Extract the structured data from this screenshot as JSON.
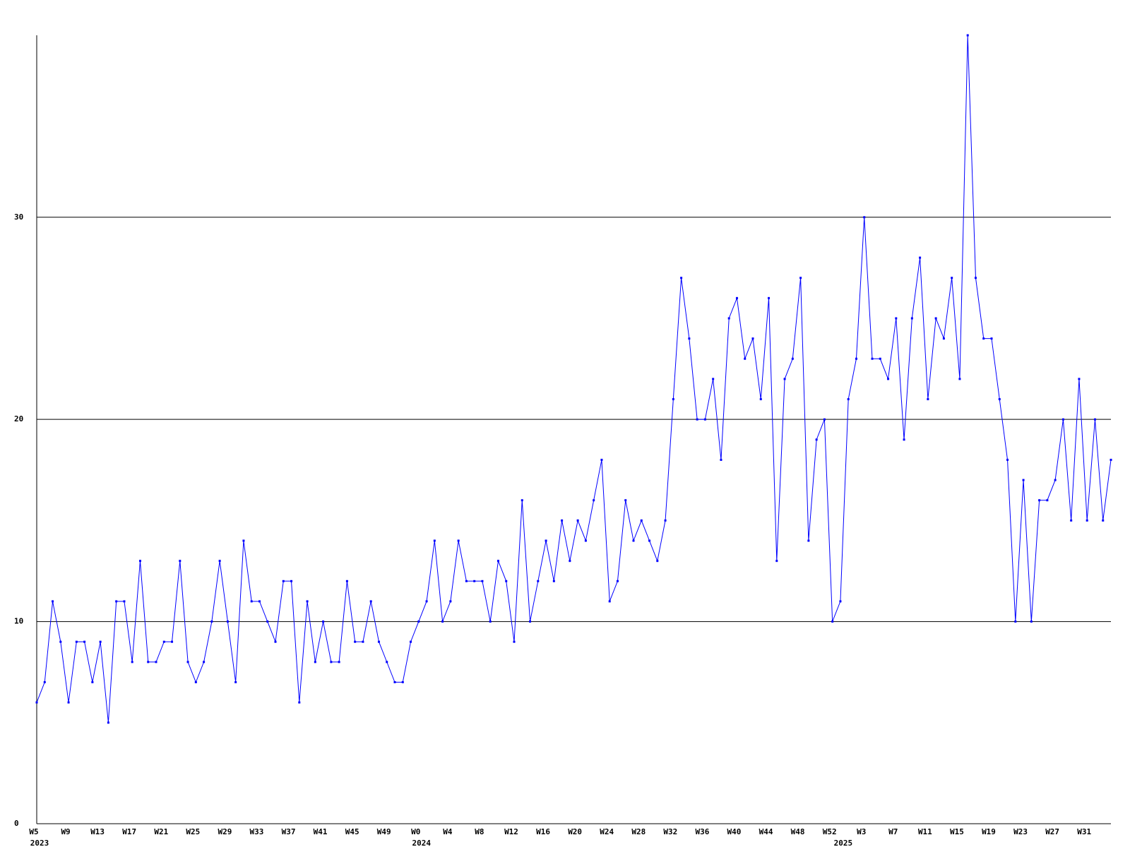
{
  "chart_data": {
    "type": "line",
    "categories": [
      "W5",
      null,
      null,
      null,
      "W9",
      null,
      null,
      null,
      "W13",
      null,
      null,
      null,
      "W17",
      null,
      null,
      null,
      "W21",
      null,
      null,
      null,
      "W25",
      null,
      null,
      null,
      "W29",
      null,
      null,
      null,
      "W33",
      null,
      null,
      null,
      "W37",
      null,
      null,
      null,
      "W41",
      null,
      null,
      null,
      "W45",
      null,
      null,
      null,
      "W49",
      null,
      null,
      null,
      "W0",
      null,
      null,
      null,
      "W4",
      null,
      null,
      null,
      "W8",
      null,
      null,
      null,
      "W12",
      null,
      null,
      null,
      "W16",
      null,
      null,
      null,
      "W20",
      null,
      null,
      null,
      "W24",
      null,
      null,
      null,
      "W28",
      null,
      null,
      null,
      "W32",
      null,
      null,
      null,
      "W36",
      null,
      null,
      null,
      "W40",
      null,
      null,
      null,
      "W44",
      null,
      null,
      null,
      "W48",
      null,
      null,
      null,
      "W52",
      null,
      null,
      null,
      "W3",
      null,
      null,
      null,
      "W7",
      null,
      null,
      null,
      "W11",
      null,
      null,
      null,
      "W15",
      null,
      null,
      null,
      "W19",
      null,
      null,
      null,
      "W23",
      null,
      null,
      null,
      "W27",
      null,
      null,
      null,
      "W31",
      null,
      null,
      null
    ],
    "year_labels": [
      {
        "category_index": 0,
        "label": "2023"
      },
      {
        "category_index": 48,
        "label": "2024"
      },
      {
        "category_index": 101,
        "label": "2025"
      }
    ],
    "series": [
      {
        "color": "#0000ff",
        "values": [
          6,
          7,
          11,
          9,
          6,
          9,
          9,
          7,
          9,
          5,
          11,
          11,
          8,
          13,
          8,
          8,
          9,
          9,
          13,
          8,
          7,
          8,
          10,
          13,
          10,
          7,
          14,
          11,
          11,
          10,
          9,
          12,
          12,
          6,
          11,
          8,
          10,
          8,
          8,
          12,
          9,
          9,
          11,
          9,
          8,
          7,
          7,
          9,
          10,
          11,
          14,
          10,
          11,
          14,
          12,
          12,
          12,
          10,
          13,
          12,
          9,
          16,
          10,
          12,
          14,
          12,
          15,
          13,
          15,
          14,
          16,
          18,
          11,
          12,
          16,
          14,
          15,
          14,
          13,
          15,
          21,
          27,
          24,
          20,
          20,
          22,
          18,
          25,
          26,
          23,
          24,
          21,
          26,
          13,
          22,
          23,
          27,
          14,
          19,
          20,
          10,
          11,
          21,
          23,
          30,
          23,
          23,
          22,
          25,
          19,
          25,
          28,
          21,
          25,
          24,
          27,
          22,
          39,
          27,
          24,
          24,
          21,
          18,
          10,
          17,
          10,
          16,
          16,
          17,
          20,
          15,
          22,
          15,
          20,
          15,
          18
        ]
      }
    ],
    "ylim": [
      0,
      39
    ],
    "yticks": [
      0,
      10,
      20,
      30
    ],
    "grid": true
  }
}
